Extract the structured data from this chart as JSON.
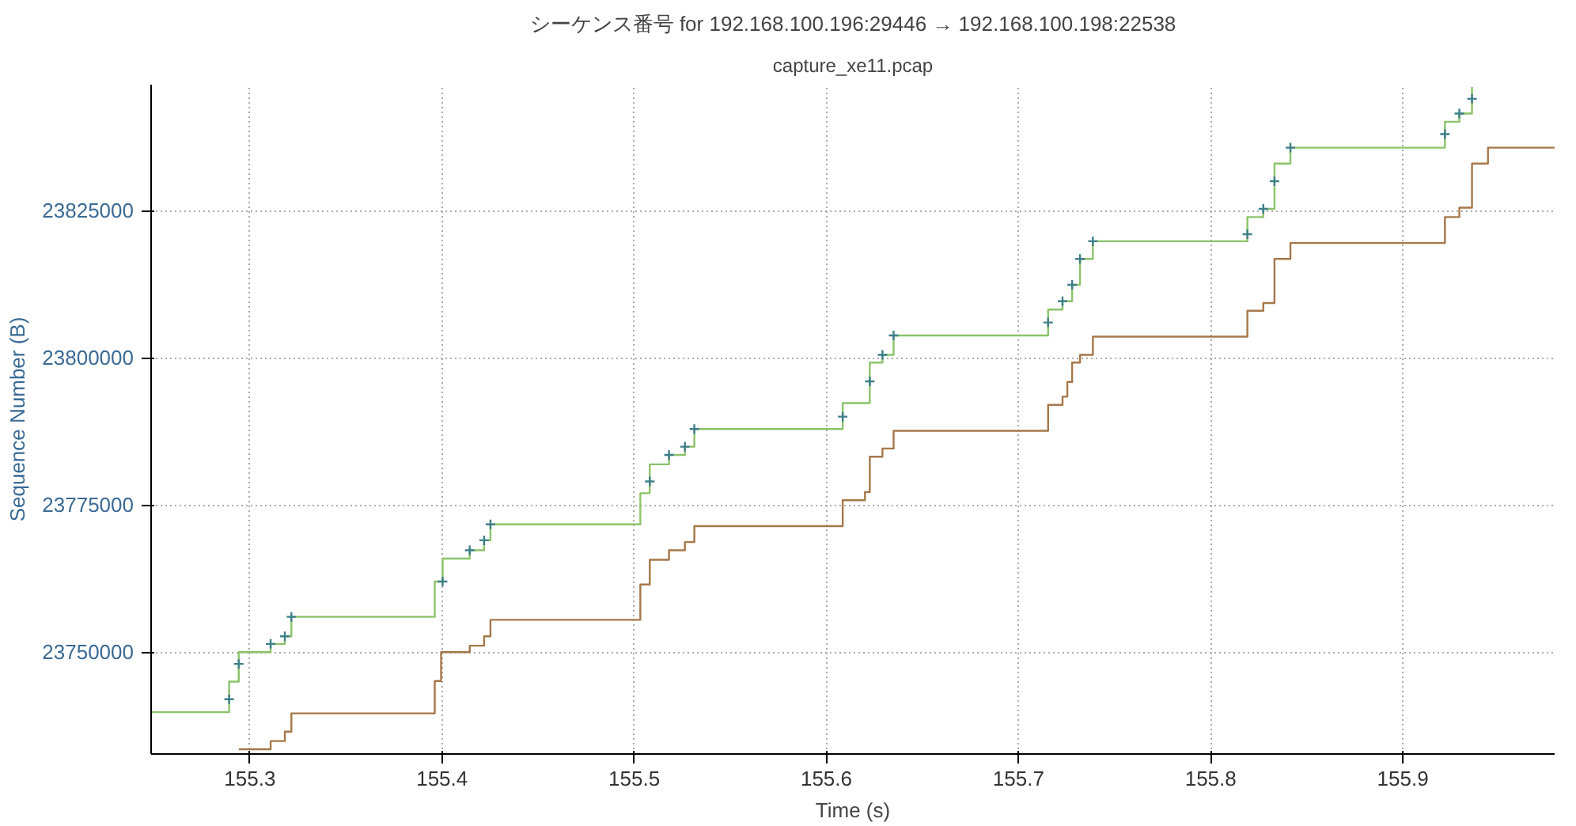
{
  "chart_data": {
    "type": "step",
    "title": "シーケンス番号 for 192.168.100.196:29446 → 192.168.100.198:22538",
    "subtitle": "capture_xe11.pcap",
    "xlabel": "Time (s)",
    "ylabel": "Sequence Number (B)",
    "xlim": [
      155.2486,
      155.979
    ],
    "ylim": [
      23732700,
      23846400
    ],
    "xticks": [
      155.3,
      155.4,
      155.5,
      155.6,
      155.7,
      155.8,
      155.9
    ],
    "yticks": [
      23750000,
      23775000,
      23800000,
      23825000
    ],
    "grid": true,
    "line_style": "solid",
    "series": [
      {
        "color": "#8cc36a",
        "x": [
          155.2486,
          155.2892,
          155.2942,
          155.3108,
          155.3182,
          155.3216,
          155.3962,
          155.4003,
          155.4144,
          155.4219,
          155.4252,
          155.5032,
          155.5081,
          155.5181,
          155.5264,
          155.5313,
          155.6085,
          155.6226,
          155.6292,
          155.635,
          155.7154,
          155.7229,
          155.7279,
          155.732,
          155.7387,
          155.8191,
          155.8274,
          155.8332,
          155.8415,
          155.9219,
          155.9294,
          155.936
        ],
        "values": [
          23739800,
          23745000,
          23750000,
          23751400,
          23752700,
          23756000,
          23762000,
          23765900,
          23767300,
          23769000,
          23771700,
          23777000,
          23781900,
          23783500,
          23784900,
          23787900,
          23792300,
          23799200,
          23800500,
          23803800,
          23808200,
          23809600,
          23812400,
          23816800,
          23819800,
          23823900,
          23825300,
          23833000,
          23835700,
          23840100,
          23841500,
          23846000
        ]
      },
      {
        "color": "#a5784a",
        "x": [
          155.2942,
          155.3108,
          155.3182,
          155.3216,
          155.3962,
          155.3995,
          155.4144,
          155.4219,
          155.4252,
          155.5032,
          155.5081,
          155.5181,
          155.5264,
          155.5313,
          155.6085,
          155.6201,
          155.6226,
          155.6292,
          155.635,
          155.7154,
          155.7229,
          155.7254,
          155.7279,
          155.732,
          155.7387,
          155.8191,
          155.8274,
          155.8332,
          155.8415,
          155.9219,
          155.9294,
          155.936,
          155.9443,
          155.979
        ],
        "values": [
          23733500,
          23734900,
          23736500,
          23739600,
          23745100,
          23750000,
          23751100,
          23752700,
          23755500,
          23761500,
          23765700,
          23767300,
          23768700,
          23771400,
          23775800,
          23777200,
          23783200,
          23784600,
          23787600,
          23792000,
          23793400,
          23795900,
          23799200,
          23800500,
          23803600,
          23808000,
          23809300,
          23816800,
          23819500,
          23823900,
          23825500,
          23833000,
          23835700,
          23835700
        ]
      },
      {
        "type": "scatter",
        "marker": "cross",
        "color": "#3f7f8a",
        "x": [
          155.2892,
          155.2942,
          155.3108,
          155.3182,
          155.3216,
          155.4003,
          155.4144,
          155.4219,
          155.4252,
          155.5081,
          155.5181,
          155.5264,
          155.5313,
          155.6085,
          155.6226,
          155.6292,
          155.635,
          155.7154,
          155.7229,
          155.7279,
          155.732,
          155.7387,
          155.8191,
          155.8274,
          155.8332,
          155.8415,
          155.9219,
          155.9294,
          155.936
        ],
        "values": [
          23742000,
          23748000,
          23751400,
          23752700,
          23756000,
          23762000,
          23767300,
          23769000,
          23771700,
          23779000,
          23783500,
          23784900,
          23787900,
          23790000,
          23796000,
          23800500,
          23803800,
          23806000,
          23809600,
          23812400,
          23816800,
          23819800,
          23821000,
          23825300,
          23830000,
          23835700,
          23838000,
          23841500,
          23844000
        ]
      }
    ]
  }
}
